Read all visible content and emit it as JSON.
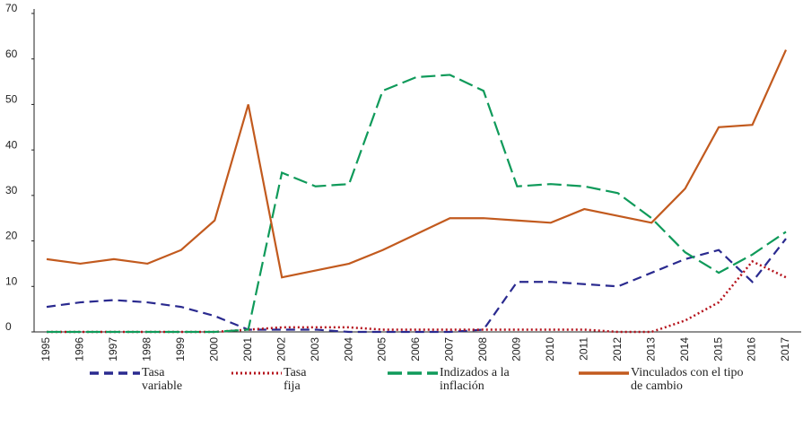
{
  "chart_data": {
    "type": "line",
    "categories": [
      "1995",
      "1996",
      "1997",
      "1998",
      "1999",
      "2000",
      "2001",
      "2002",
      "2003",
      "2004",
      "2005",
      "2006",
      "2007",
      "2008",
      "2009",
      "2010",
      "2011",
      "2012",
      "2013",
      "2014",
      "2015",
      "2016",
      "2017"
    ],
    "ylim": [
      0,
      70
    ],
    "yticks": [
      0,
      10,
      20,
      30,
      40,
      50,
      60,
      70
    ],
    "grid": false,
    "series": [
      {
        "name": "Tasa variable",
        "color": "#2a2a8f",
        "style": "dashed",
        "values": [
          5.5,
          6.5,
          7,
          6.5,
          5.5,
          3.5,
          0.5,
          0.5,
          0.5,
          0,
          0,
          0,
          0,
          0.5,
          11,
          11,
          10.5,
          10,
          13,
          16,
          18,
          11,
          20.5
        ]
      },
      {
        "name": "Tasa fija",
        "color": "#b5121b",
        "style": "dotted",
        "values": [
          0,
          0,
          0,
          0,
          0,
          0,
          0.5,
          1,
          1,
          1,
          0.5,
          0.5,
          0.5,
          0.5,
          0.5,
          0.5,
          0.5,
          0,
          0,
          2.5,
          6.5,
          15.5,
          12
        ]
      },
      {
        "name": "Indizados a la inflación",
        "color": "#0f9a5a",
        "style": "longdash",
        "values": [
          0,
          0,
          0,
          0,
          0,
          0,
          0.5,
          35,
          32,
          32.5,
          53,
          56,
          56.5,
          53,
          32,
          32.5,
          32,
          30.5,
          25,
          17.5,
          13,
          17,
          22
        ]
      },
      {
        "name": "Vinculados con el tipo de cambio",
        "color": "#c25a1e",
        "style": "solid",
        "values": [
          16,
          15,
          16,
          15,
          18,
          24.5,
          50,
          12,
          13.5,
          15,
          18,
          21.5,
          25,
          25,
          24.5,
          24,
          27,
          25.5,
          24,
          31.5,
          45,
          45.5,
          62
        ]
      }
    ]
  }
}
